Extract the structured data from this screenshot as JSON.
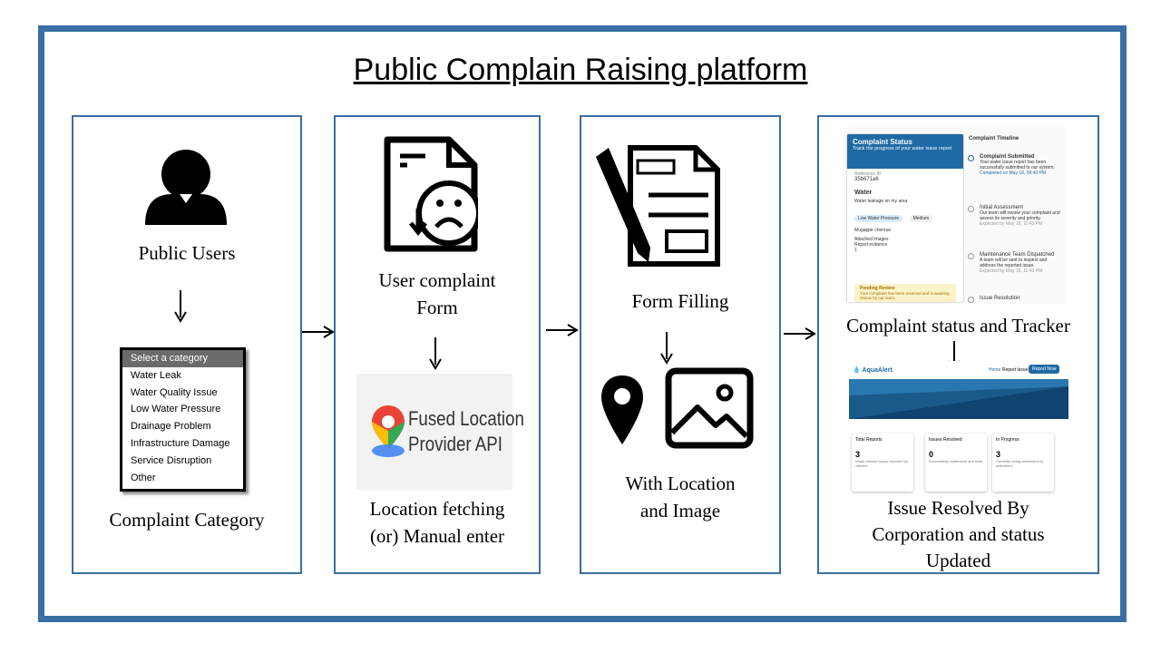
{
  "title": "Public Complain Raising platform",
  "col1": {
    "label_top": "Public Users",
    "label_bottom": "Complaint Category",
    "dropdown": {
      "selected": "Select a category",
      "options": [
        "Water Leak",
        "Water Quality Issue",
        "Low Water Pressure",
        "Drainage Problem",
        "Infrastructure Damage",
        "Service Disruption",
        "Other"
      ]
    }
  },
  "col2": {
    "label_top_1": "User complaint",
    "label_top_2": "Form",
    "api_line1": "Fused Location",
    "api_line2": "Provider API",
    "label_bottom_1": "Location fetching",
    "label_bottom_2": "(or) Manual enter"
  },
  "col3": {
    "label_top": "Form Filling",
    "label_bottom_1": "With Location",
    "label_bottom_2": "and Image"
  },
  "col4": {
    "label_mid": "Complaint status and Tracker",
    "label_bottom_1": "Issue Resolved By",
    "label_bottom_2": "Corporation and status",
    "label_bottom_3": "Updated",
    "status": {
      "heading": "Complaint Status",
      "sub": "Track the progress of your water issue report",
      "ref_label": "Reference ID",
      "ref_id": "35b671a6",
      "type": "Water",
      "desc": "Water leakage on my area",
      "chip1": "Low Water Pressure",
      "chip2": "Medium",
      "location": "Mugappir chennai",
      "attached": "Attached Images",
      "evidence": "Report evidence 1",
      "pending_title": "Pending Review",
      "pending_text": "Your complaint has been received and is awaiting review by our team.",
      "timeline_title": "Complaint Timeline",
      "t1_title": "Complaint Submitted",
      "t1_text": "Your water issue report has been successfully submitted to our system.",
      "t1_date": "Completed on May 18, 09:43 PM",
      "t2_title": "Initial Assessment",
      "t2_text": "Our team will review your complaint and assess its severity and priority.",
      "t2_date": "Expected by May 18, 11:43 PM",
      "t3_title": "Maintenance Team Dispatched",
      "t3_text": "A team will be sent to inspect and address the reported issue.",
      "t3_date": "Expected by May 19, 11:43 PM",
      "t4_title": "Issue Resolution"
    },
    "aqualert": {
      "brand": "AquaAlert",
      "nav_home": "Home",
      "nav_report": "Report Issue",
      "nav_btn": "Report Now",
      "cards": [
        {
          "title": "Total Reports",
          "value": "3",
          "desc": "Water-related issues reported by citizens"
        },
        {
          "title": "Issues Resolved",
          "value": "0",
          "desc": "Successfully addressed and fixed"
        },
        {
          "title": "In Progress",
          "value": "3",
          "desc": "Currently being addressed by authorities"
        }
      ]
    }
  },
  "colors": {
    "frame": "#3a6ea5",
    "accent": "#1f6aa5"
  },
  "icons": [
    "user-silhouette-icon",
    "sad-document-icon",
    "location-pin-logo-icon",
    "form-pen-icon",
    "map-pin-icon",
    "image-icon",
    "down-arrow-icon",
    "right-arrow-icon"
  ]
}
